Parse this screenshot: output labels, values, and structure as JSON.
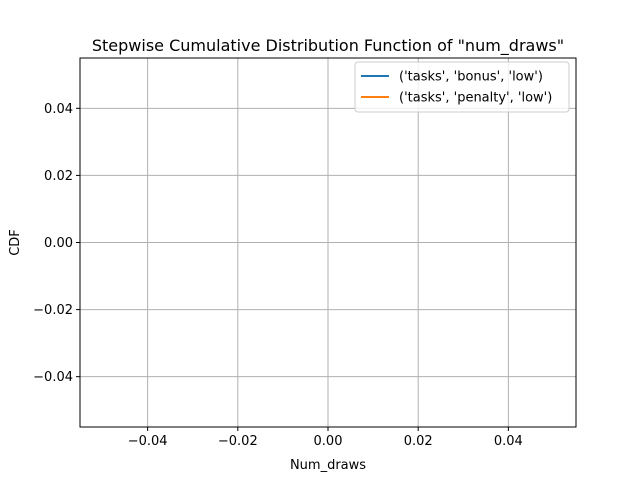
{
  "chart_data": {
    "type": "line",
    "title": "Stepwise Cumulative Distribution Function of \"num_draws\"",
    "xlabel": "Num_draws",
    "ylabel": "CDF",
    "xlim": [
      -0.055,
      0.055
    ],
    "ylim": [
      -0.055,
      0.055
    ],
    "x_ticks": [
      -0.04,
      -0.02,
      0.0,
      0.02,
      0.04
    ],
    "x_tick_labels": [
      "−0.04",
      "−0.02",
      "0.00",
      "0.02",
      "0.04"
    ],
    "y_ticks": [
      0.04,
      0.02,
      0.0,
      -0.02,
      -0.04
    ],
    "y_tick_labels": [
      "0.04",
      "0.02",
      "0.00",
      "−0.02",
      "−0.04"
    ],
    "grid": true,
    "legend_position": "top-right",
    "series": [
      {
        "name": "('tasks', 'bonus', 'low')",
        "color": "#1f77b4",
        "x": [],
        "y": []
      },
      {
        "name": "('tasks', 'penalty', 'low')",
        "color": "#ff7f0e",
        "x": [],
        "y": []
      }
    ]
  }
}
